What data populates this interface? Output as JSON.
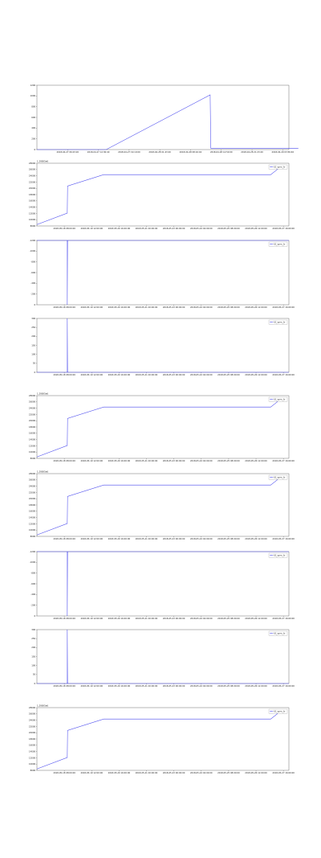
{
  "chart_data": [
    {
      "type": "line",
      "title": "",
      "offset_label": "",
      "legend": "",
      "color": "#4a4aee",
      "x_ticks": [
        "2018-04-27 06:03:20",
        "2018-04-27 12:36:40",
        "2018-04-27 19:10:00",
        "2018-04-28 01:43:20",
        "2018-04-28 08:16:40",
        "2018-04-28 14:50:00",
        "2018-04-28 21:23:20",
        "2018-04-29 03:56:40"
      ],
      "xlim": [
        0,
        8
      ],
      "y_ticks": [
        "0",
        "200",
        "400",
        "600",
        "800",
        "1000",
        "1200"
      ],
      "ylim": [
        0,
        1200
      ],
      "x": [
        0,
        2.2,
        5.5,
        5.52,
        8.3
      ],
      "y": [
        0,
        0,
        1020,
        25,
        25
      ]
    },
    {
      "type": "line",
      "title": "",
      "offset_label": "1.29005e6",
      "legend": "t3_sync_tr",
      "color": "#4a4aee",
      "x_ticks": [
        "2018-05-18 08:00:00",
        "2018-05-19 12:00:00",
        "2018-05-20 16:00:00",
        "2018-05-21 20:00:00",
        "2018-05-23 00:00:00",
        "2018-05-24 04:00:00",
        "2018-05-25 08:00:00",
        "2018-05-26 12:00:00",
        "2018-05-27 16:00:00"
      ],
      "xlim": [
        0,
        8.3
      ],
      "y_ticks": [
        "8000",
        "10000",
        "12000",
        "14000",
        "16000",
        "18000",
        "20000",
        "22000",
        "24000",
        "26000",
        "28000"
      ],
      "ylim": [
        7000,
        29000
      ],
      "x": [
        0,
        1.0,
        1.01,
        2.2,
        7.7,
        8.0
      ],
      "y": [
        7500,
        11500,
        21000,
        25000,
        25000,
        27500
      ]
    },
    {
      "type": "line",
      "title": "",
      "offset_label": "",
      "legend": "t3_sync_tr",
      "color": "#4a4aee",
      "x_ticks": [
        "2018-05-18 08:00:00",
        "2018-05-19 12:00:00",
        "2018-05-20 16:00:00",
        "2018-05-21 20:00:00",
        "2018-05-23 00:00:00",
        "2018-05-24 04:00:00",
        "2018-05-25 08:00:00",
        "2018-05-26 12:00:00",
        "2018-05-27 16:00:00"
      ],
      "xlim": [
        0,
        8.3
      ],
      "y_ticks": [
        "0",
        "-200",
        "-400",
        "-600",
        "-800",
        "-1000",
        "-1200"
      ],
      "ylim": [
        -1200,
        0
      ],
      "x": [
        0,
        1.0,
        1.0,
        1.01,
        8.3
      ],
      "y": [
        0,
        0,
        -1200,
        0,
        0
      ]
    },
    {
      "type": "line",
      "title": "",
      "offset_label": "",
      "legend": "t3_sync_tr",
      "color": "#4a4aee",
      "x_ticks": [
        "2018-05-18 08:00:00",
        "2018-05-19 12:00:00",
        "2018-05-20 16:00:00",
        "2018-05-21 20:00:00",
        "2018-05-23 00:00:00",
        "2018-05-24 04:00:00",
        "2018-05-25 08:00:00",
        "2018-05-26 12:00:00",
        "2018-05-27 16:00:00"
      ],
      "xlim": [
        0,
        8.3
      ],
      "y_ticks": [
        "0",
        "50",
        "100",
        "150",
        "200",
        "250",
        "300"
      ],
      "ylim": [
        0,
        300
      ],
      "x": [
        0,
        1.0,
        1.0,
        1.01,
        8.3
      ],
      "y": [
        0,
        0,
        300,
        0,
        0
      ]
    },
    {
      "type": "line",
      "title": "",
      "offset_label": "1.29005e6",
      "legend": "t3_sync_tr",
      "color": "#4a4aee",
      "x_ticks": [
        "2018-05-18 08:00:00",
        "2018-05-19 12:00:00",
        "2018-05-20 16:00:00",
        "2018-05-21 20:00:00",
        "2018-05-23 00:00:00",
        "2018-05-24 04:00:00",
        "2018-05-25 08:00:00",
        "2018-05-26 12:00:00",
        "2018-05-27 16:00:00"
      ],
      "xlim": [
        0,
        8.3
      ],
      "y_ticks": [
        "8000",
        "10000",
        "12000",
        "14000",
        "16000",
        "18000",
        "20000",
        "22000",
        "24000",
        "26000",
        "28000"
      ],
      "ylim": [
        7000,
        29000
      ],
      "x": [
        0,
        1.0,
        1.01,
        2.2,
        7.7,
        8.0
      ],
      "y": [
        7500,
        11500,
        21000,
        25000,
        25000,
        27500
      ]
    },
    {
      "type": "line",
      "title": "",
      "offset_label": "1.29005e6",
      "legend": "t3_sync_tr",
      "color": "#4a4aee",
      "x_ticks": [
        "2018-05-18 08:00:00",
        "2018-05-19 12:00:00",
        "2018-05-20 16:00:00",
        "2018-05-21 20:00:00",
        "2018-05-23 00:00:00",
        "2018-05-24 04:00:00",
        "2018-05-25 08:00:00",
        "2018-05-26 12:00:00",
        "2018-05-27 16:00:00"
      ],
      "xlim": [
        0,
        8.3
      ],
      "y_ticks": [
        "8000",
        "10000",
        "12000",
        "14000",
        "16000",
        "18000",
        "20000",
        "22000",
        "24000",
        "26000",
        "28000"
      ],
      "ylim": [
        7000,
        29000
      ],
      "x": [
        0,
        1.0,
        1.01,
        2.2,
        7.7,
        8.0
      ],
      "y": [
        7500,
        11500,
        21000,
        25000,
        25000,
        27500
      ]
    },
    {
      "type": "line",
      "title": "",
      "offset_label": "",
      "legend": "t3_sync_tr",
      "color": "#4a4aee",
      "x_ticks": [
        "2018-05-18 08:00:00",
        "2018-05-19 12:00:00",
        "2018-05-20 16:00:00",
        "2018-05-21 20:00:00",
        "2018-05-23 00:00:00",
        "2018-05-24 04:00:00",
        "2018-05-25 08:00:00",
        "2018-05-26 12:00:00",
        "2018-05-27 16:00:00"
      ],
      "xlim": [
        0,
        8.3
      ],
      "y_ticks": [
        "0",
        "-200",
        "-400",
        "-600",
        "-800",
        "-1000",
        "-1200"
      ],
      "ylim": [
        -1200,
        0
      ],
      "x": [
        0,
        1.0,
        1.0,
        1.01,
        8.3
      ],
      "y": [
        0,
        0,
        -1200,
        0,
        0
      ]
    },
    {
      "type": "line",
      "title": "",
      "offset_label": "",
      "legend": "t3_sync_tr",
      "color": "#4a4aee",
      "x_ticks": [
        "2018-05-18 08:00:00",
        "2018-05-19 12:00:00",
        "2018-05-20 16:00:00",
        "2018-05-21 20:00:00",
        "2018-05-23 00:00:00",
        "2018-05-24 04:00:00",
        "2018-05-25 08:00:00",
        "2018-05-26 12:00:00",
        "2018-05-27 16:00:00"
      ],
      "xlim": [
        0,
        8.3
      ],
      "y_ticks": [
        "0",
        "50",
        "100",
        "150",
        "200",
        "250",
        "300"
      ],
      "ylim": [
        0,
        300
      ],
      "x": [
        0,
        1.0,
        1.0,
        1.01,
        8.3
      ],
      "y": [
        0,
        0,
        300,
        0,
        0
      ]
    },
    {
      "type": "line",
      "title": "",
      "offset_label": "1.29005e6",
      "legend": "t3_sync_tr",
      "color": "#4a4aee",
      "x_ticks": [
        "2018-05-18 08:00:00",
        "2018-05-19 12:00:00",
        "2018-05-20 16:00:00",
        "2018-05-21 20:00:00",
        "2018-05-23 00:00:00",
        "2018-05-24 04:00:00",
        "2018-05-25 08:00:00",
        "2018-05-26 12:00:00",
        "2018-05-27 16:00:00"
      ],
      "xlim": [
        0,
        8.3
      ],
      "y_ticks": [
        "8000",
        "10000",
        "12000",
        "14000",
        "16000",
        "18000",
        "20000",
        "22000",
        "24000",
        "26000",
        "28000"
      ],
      "ylim": [
        7000,
        29000
      ],
      "x": [
        0,
        1.0,
        1.01,
        2.2,
        7.7,
        8.0
      ],
      "y": [
        7500,
        11500,
        21000,
        25000,
        25000,
        27500
      ]
    }
  ]
}
